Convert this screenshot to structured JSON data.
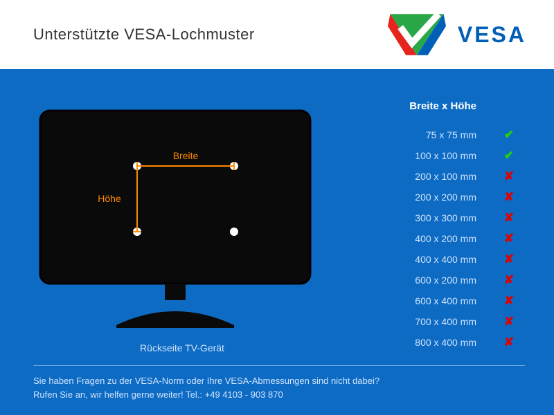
{
  "header": {
    "title": "Unterstützte VESA-Lochmuster",
    "logo_text": "VESA",
    "logo_colors": {
      "green": "#2aa847",
      "red": "#e5241d",
      "blue": "#0060b8"
    }
  },
  "colors": {
    "body_bg": "#0d6bc4",
    "text_light": "#cfe4ff",
    "accent": "#ff8a00",
    "yes": "#25d600",
    "no": "#e20000",
    "tv_fill": "#0a0a0a"
  },
  "tv": {
    "caption": "Rückseite TV-Gerät",
    "width_label": "Breite",
    "height_label": "Höhe"
  },
  "table": {
    "header": "Breite x Höhe",
    "rows": [
      {
        "label": "75 x 75 mm",
        "supported": true
      },
      {
        "label": "100 x 100 mm",
        "supported": true
      },
      {
        "label": "200 x 100 mm",
        "supported": false
      },
      {
        "label": "200 x 200 mm",
        "supported": false
      },
      {
        "label": "300 x 300 mm",
        "supported": false
      },
      {
        "label": "400 x 200 mm",
        "supported": false
      },
      {
        "label": "400 x 400 mm",
        "supported": false
      },
      {
        "label": "600 x 200 mm",
        "supported": false
      },
      {
        "label": "600 x 400 mm",
        "supported": false
      },
      {
        "label": "700 x 400 mm",
        "supported": false
      },
      {
        "label": "800 x 400 mm",
        "supported": false
      }
    ]
  },
  "footer": {
    "line1": "Sie haben Fragen zu der VESA-Norm oder Ihre VESA-Abmessungen sind nicht dabei?",
    "line2": "Rufen Sie an, wir helfen gerne weiter! Tel.: +49 4103 - 903 870"
  }
}
